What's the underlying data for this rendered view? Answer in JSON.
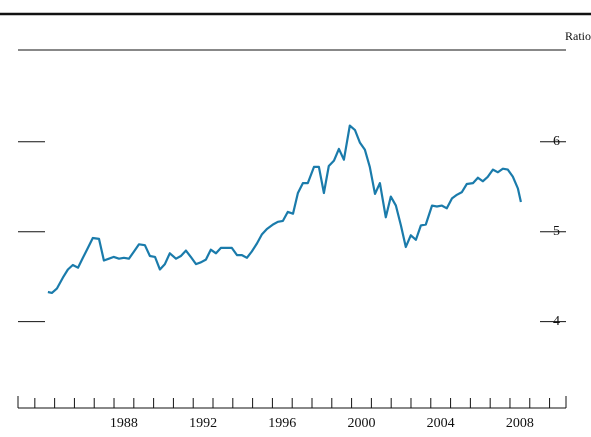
{
  "chart_data": {
    "type": "line",
    "y_axis_label": "Ratio",
    "x": [
      1984.66,
      1984.86,
      1985.12,
      1985.42,
      1985.67,
      1985.92,
      1986.18,
      1986.43,
      1986.68,
      1986.93,
      1987.24,
      1987.49,
      1987.74,
      1987.99,
      1988.25,
      1988.5,
      1988.75,
      1989.01,
      1989.26,
      1989.56,
      1989.81,
      1990.07,
      1990.32,
      1990.57,
      1990.82,
      1991.13,
      1991.38,
      1991.63,
      1991.88,
      1992.14,
      1992.39,
      1992.64,
      1992.89,
      1993.15,
      1993.4,
      1993.65,
      1993.95,
      1994.21,
      1994.46,
      1994.71,
      1994.96,
      1995.22,
      1995.47,
      1995.72,
      1996.03,
      1996.28,
      1996.53,
      1996.78,
      1997.04,
      1997.29,
      1997.54,
      1997.79,
      1998.1,
      1998.35,
      1998.6,
      1998.85,
      1999.11,
      1999.36,
      1999.61,
      1999.91,
      2000.17,
      2000.42,
      2000.67,
      2000.92,
      2001.18,
      2001.43,
      2001.73,
      2001.98,
      2002.24,
      2002.49,
      2002.74,
      2002.99,
      2003.25,
      2003.5,
      2003.75,
      2004.06,
      2004.31,
      2004.56,
      2004.81,
      2005.07,
      2005.32,
      2005.57,
      2005.82,
      2006.13,
      2006.38,
      2006.63,
      2006.88,
      2007.14,
      2007.39,
      2007.64,
      2007.89,
      2008.15,
      2008.4,
      2008.55
    ],
    "series": [
      {
        "color": "#1a7bab",
        "values": [
          4.33,
          4.32,
          4.37,
          4.49,
          4.58,
          4.63,
          4.6,
          4.71,
          4.82,
          4.93,
          4.92,
          4.68,
          4.7,
          4.72,
          4.7,
          4.71,
          4.7,
          4.78,
          4.86,
          4.85,
          4.73,
          4.72,
          4.58,
          4.64,
          4.76,
          4.7,
          4.73,
          4.79,
          4.72,
          4.64,
          4.66,
          4.69,
          4.8,
          4.76,
          4.82,
          4.82,
          4.82,
          4.74,
          4.74,
          4.71,
          4.78,
          4.87,
          4.97,
          5.03,
          5.08,
          5.11,
          5.12,
          5.22,
          5.2,
          5.43,
          5.54,
          5.54,
          5.72,
          5.72,
          5.43,
          5.73,
          5.79,
          5.92,
          5.8,
          6.18,
          6.13,
          5.99,
          5.91,
          5.72,
          5.42,
          5.54,
          5.16,
          5.39,
          5.29,
          5.07,
          4.83,
          4.96,
          4.91,
          5.07,
          5.08,
          5.29,
          5.28,
          5.29,
          5.26,
          5.37,
          5.41,
          5.44,
          5.53,
          5.54,
          5.6,
          5.56,
          5.61,
          5.69,
          5.66,
          5.7,
          5.69,
          5.61,
          5.48,
          5.33
        ]
      }
    ],
    "xlim": [
      1983.15,
      2010.83
    ],
    "xticks": [
      {
        "value": 1988.5,
        "label": "1988"
      },
      {
        "value": 1992.5,
        "label": "1992"
      },
      {
        "value": 1996.5,
        "label": "1996"
      },
      {
        "value": 2000.5,
        "label": "2000"
      },
      {
        "value": 2004.5,
        "label": "2004"
      },
      {
        "value": 2008.5,
        "label": "2008"
      }
    ],
    "minor_xticks": [
      1984,
      1985,
      1986,
      1987,
      1988,
      1989,
      1990,
      1991,
      1992,
      1993,
      1994,
      1995,
      1996,
      1997,
      1998,
      1999,
      2000,
      2001,
      2002,
      2003,
      2004,
      2005,
      2006,
      2007,
      2008,
      2009,
      2010
    ],
    "ylim": [
      3.04,
      7.02
    ],
    "yticks": [
      4,
      5,
      6
    ]
  }
}
